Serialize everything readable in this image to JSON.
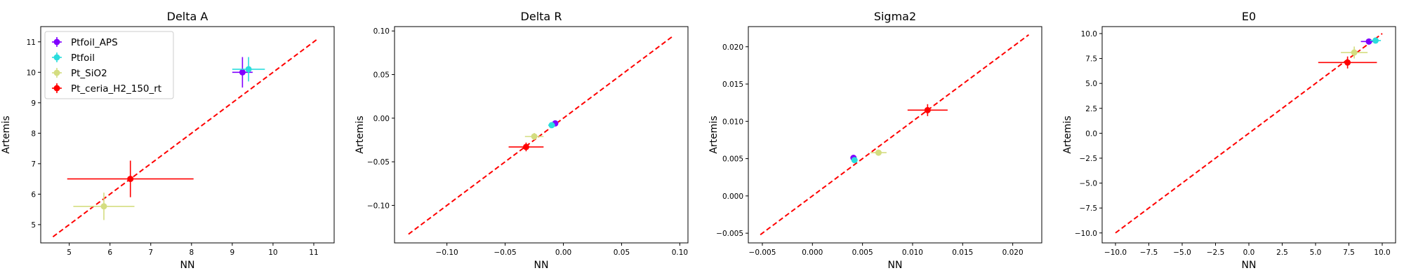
{
  "figure": {
    "legend_position": "upper-left",
    "legend_panel": 0
  },
  "series_styles": [
    {
      "name": "Ptfoil_APS",
      "color": "#8000ff"
    },
    {
      "name": "Ptfoil",
      "color": "#2adddd"
    },
    {
      "name": "Pt_SiO2",
      "color": "#d4dd80"
    },
    {
      "name": "Pt_ceria_H2_150_rt",
      "color": "#ff0000"
    }
  ],
  "chart_data": [
    {
      "type": "scatter",
      "title": "Delta A",
      "xlabel": "NN",
      "ylabel": "Artemis",
      "xlim": [
        4.3,
        11.5
      ],
      "ylim": [
        4.4,
        11.5
      ],
      "xticks": [
        5,
        6,
        7,
        8,
        9,
        10,
        11
      ],
      "yticks": [
        5,
        6,
        7,
        8,
        9,
        10,
        11
      ],
      "xtick_labels": [
        "5",
        "6",
        "7",
        "8",
        "9",
        "10",
        "11"
      ],
      "ytick_labels": [
        "5",
        "6",
        "7",
        "8",
        "9",
        "10",
        "11"
      ],
      "diagonal": [
        4.6,
        11.1
      ],
      "grid": false,
      "legend": true,
      "points": [
        {
          "series": "Ptfoil_APS",
          "x": 9.25,
          "y": 10.0,
          "xerr": 0.25,
          "yerr": 0.5
        },
        {
          "series": "Ptfoil",
          "x": 9.4,
          "y": 10.1,
          "xerr": 0.4,
          "yerr": 0.4
        },
        {
          "series": "Pt_SiO2",
          "x": 5.85,
          "y": 5.6,
          "xerr": 0.75,
          "yerr": 0.45
        },
        {
          "series": "Pt_ceria_H2_150_rt",
          "x": 6.5,
          "y": 6.5,
          "xerr": 1.55,
          "yerr": 0.6
        }
      ]
    },
    {
      "type": "scatter",
      "title": "Delta R",
      "xlabel": "NN",
      "ylabel": "Artemis",
      "xlim": [
        -0.145,
        0.107
      ],
      "ylim": [
        -0.143,
        0.105
      ],
      "xticks": [
        -0.1,
        -0.05,
        0.0,
        0.05,
        0.1
      ],
      "yticks": [
        -0.1,
        -0.05,
        0.0,
        0.05,
        0.1
      ],
      "xtick_labels": [
        "−0.10",
        "−0.05",
        "0.00",
        "0.05",
        "0.10"
      ],
      "ytick_labels": [
        "−0.10",
        "−0.05",
        "0.00",
        "0.05",
        "0.10"
      ],
      "diagonal": [
        -0.133,
        0.095
      ],
      "grid": false,
      "legend": false,
      "points": [
        {
          "series": "Ptfoil_APS",
          "x": -0.007,
          "y": -0.006,
          "xerr": 0.002,
          "yerr": 0.002
        },
        {
          "series": "Ptfoil",
          "x": -0.01,
          "y": -0.008,
          "xerr": 0.003,
          "yerr": 0.003
        },
        {
          "series": "Pt_SiO2",
          "x": -0.025,
          "y": -0.021,
          "xerr": 0.008,
          "yerr": 0.004
        },
        {
          "series": "Pt_ceria_H2_150_rt",
          "x": -0.032,
          "y": -0.033,
          "xerr": 0.015,
          "yerr": 0.005
        }
      ]
    },
    {
      "type": "scatter",
      "title": "Sigma2",
      "xlabel": "NN",
      "ylabel": "Artemis",
      "xlim": [
        -0.0064,
        0.0229
      ],
      "ylim": [
        -0.0063,
        0.0227
      ],
      "xticks": [
        -0.005,
        0.0,
        0.005,
        0.01,
        0.015,
        0.02
      ],
      "yticks": [
        -0.005,
        0.0,
        0.005,
        0.01,
        0.015,
        0.02
      ],
      "xtick_labels": [
        "−0.005",
        "0.000",
        "0.005",
        "0.010",
        "0.015",
        "0.020"
      ],
      "ytick_labels": [
        "−0.005",
        "0.000",
        "0.005",
        "0.010",
        "0.015",
        "0.020"
      ],
      "diagonal": [
        -0.0052,
        0.0216
      ],
      "grid": false,
      "legend": false,
      "points": [
        {
          "series": "Ptfoil_APS",
          "x": 0.0041,
          "y": 0.0051,
          "xerr": 0.0002,
          "yerr": 0.0002
        },
        {
          "series": "Ptfoil",
          "x": 0.0042,
          "y": 0.0048,
          "xerr": 0.0002,
          "yerr": 0.0002
        },
        {
          "series": "Pt_SiO2",
          "x": 0.0066,
          "y": 0.0058,
          "xerr": 0.0008,
          "yerr": 0.0004
        },
        {
          "series": "Pt_ceria_H2_150_rt",
          "x": 0.0115,
          "y": 0.0115,
          "xerr": 0.002,
          "yerr": 0.0008
        }
      ]
    },
    {
      "type": "scatter",
      "title": "E0",
      "xlabel": "NN",
      "ylabel": "Artemis",
      "xlim": [
        -11.0,
        11.0
      ],
      "ylim": [
        -11.0,
        10.7
      ],
      "xticks": [
        -10.0,
        -7.5,
        -5.0,
        -2.5,
        0.0,
        2.5,
        5.0,
        7.5,
        10.0
      ],
      "yticks": [
        -10.0,
        -7.5,
        -5.0,
        -2.5,
        0.0,
        2.5,
        5.0,
        7.5,
        10.0
      ],
      "xtick_labels": [
        "−10.0",
        "−7.5",
        "−5.0",
        "−2.5",
        "0.0",
        "2.5",
        "5.0",
        "7.5",
        "10.0"
      ],
      "ytick_labels": [
        "−10.0",
        "−7.5",
        "−5.0",
        "−2.5",
        "0.0",
        "2.5",
        "5.0",
        "7.5",
        "10.0"
      ],
      "diagonal": [
        -10.0,
        10.0
      ],
      "grid": false,
      "legend": false,
      "points": [
        {
          "series": "Ptfoil_APS",
          "x": 9.0,
          "y": 9.2,
          "xerr": 0.6,
          "yerr": 0.3
        },
        {
          "series": "Ptfoil",
          "x": 9.5,
          "y": 9.3,
          "xerr": 0.4,
          "yerr": 0.3
        },
        {
          "series": "Pt_SiO2",
          "x": 7.9,
          "y": 8.1,
          "xerr": 1.0,
          "yerr": 0.6
        },
        {
          "series": "Pt_ceria_H2_150_rt",
          "x": 7.4,
          "y": 7.1,
          "xerr": 2.2,
          "yerr": 0.6
        }
      ]
    }
  ]
}
